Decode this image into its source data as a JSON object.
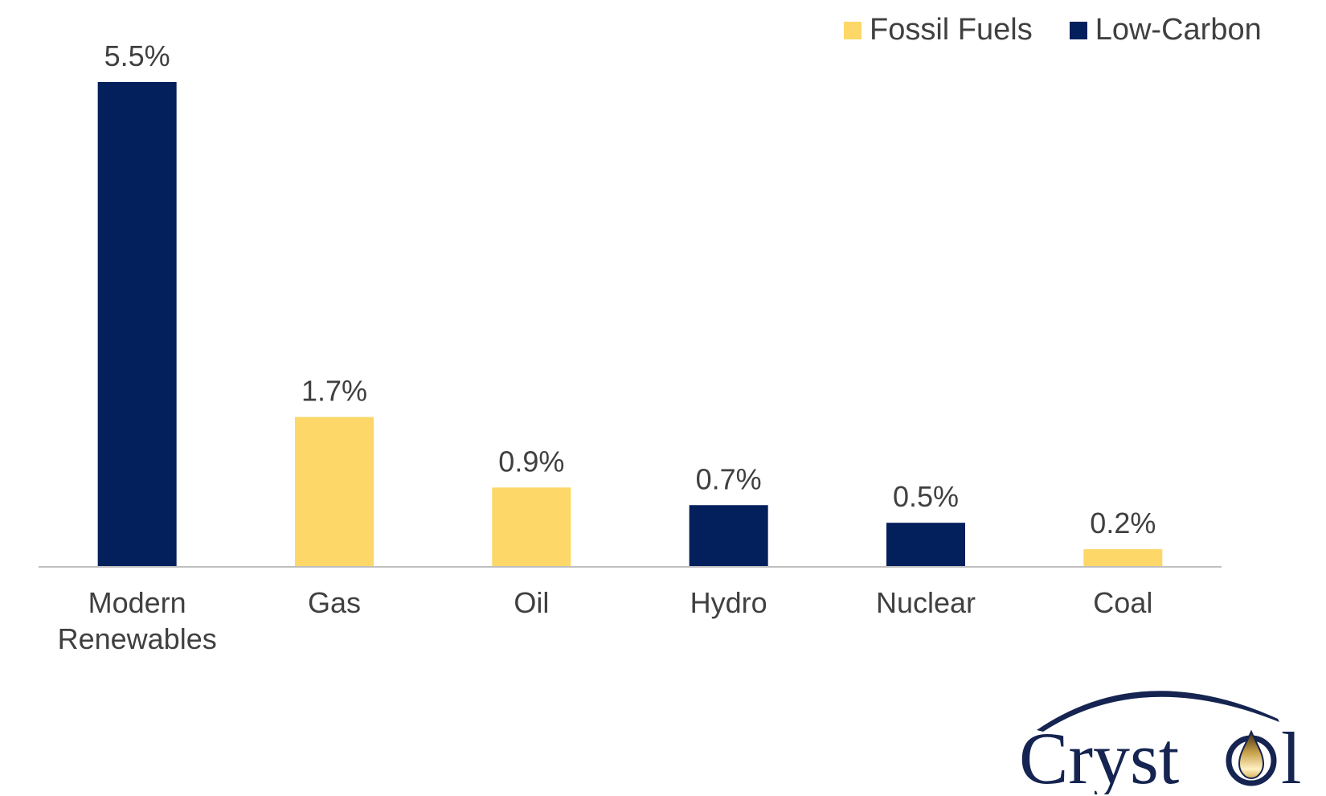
{
  "legend": {
    "fossil_label": "Fossil Fuels",
    "lowcarbon_label": "Low-Carbon"
  },
  "colors": {
    "fossil": "#FDD868",
    "lowcarbon": "#031F5C",
    "axis": "#BFBFBF",
    "text": "#404040"
  },
  "chart_data": {
    "type": "bar",
    "title": "",
    "xlabel": "",
    "ylabel": "",
    "ylim": [
      0,
      5.5
    ],
    "categories": [
      "Modern Renewables",
      "Gas",
      "Oil",
      "Hydro",
      "Nuclear",
      "Coal"
    ],
    "category_lines": [
      [
        "Modern",
        "Renewables"
      ],
      [
        "Gas"
      ],
      [
        "Oil"
      ],
      [
        "Hydro"
      ],
      [
        "Nuclear"
      ],
      [
        "Coal"
      ]
    ],
    "values": [
      5.5,
      1.7,
      0.9,
      0.7,
      0.5,
      0.2
    ],
    "labels": [
      "5.5%",
      "1.7%",
      "0.9%",
      "0.7%",
      "0.5%",
      "0.2%"
    ],
    "groups": [
      "Low-Carbon",
      "Fossil Fuels",
      "Fossil Fuels",
      "Low-Carbon",
      "Low-Carbon",
      "Fossil Fuels"
    ],
    "grid": false,
    "legend_position": "top-right"
  },
  "logo": {
    "text": "Cryst",
    "text_end": "l",
    "name": "crystol-logo"
  }
}
